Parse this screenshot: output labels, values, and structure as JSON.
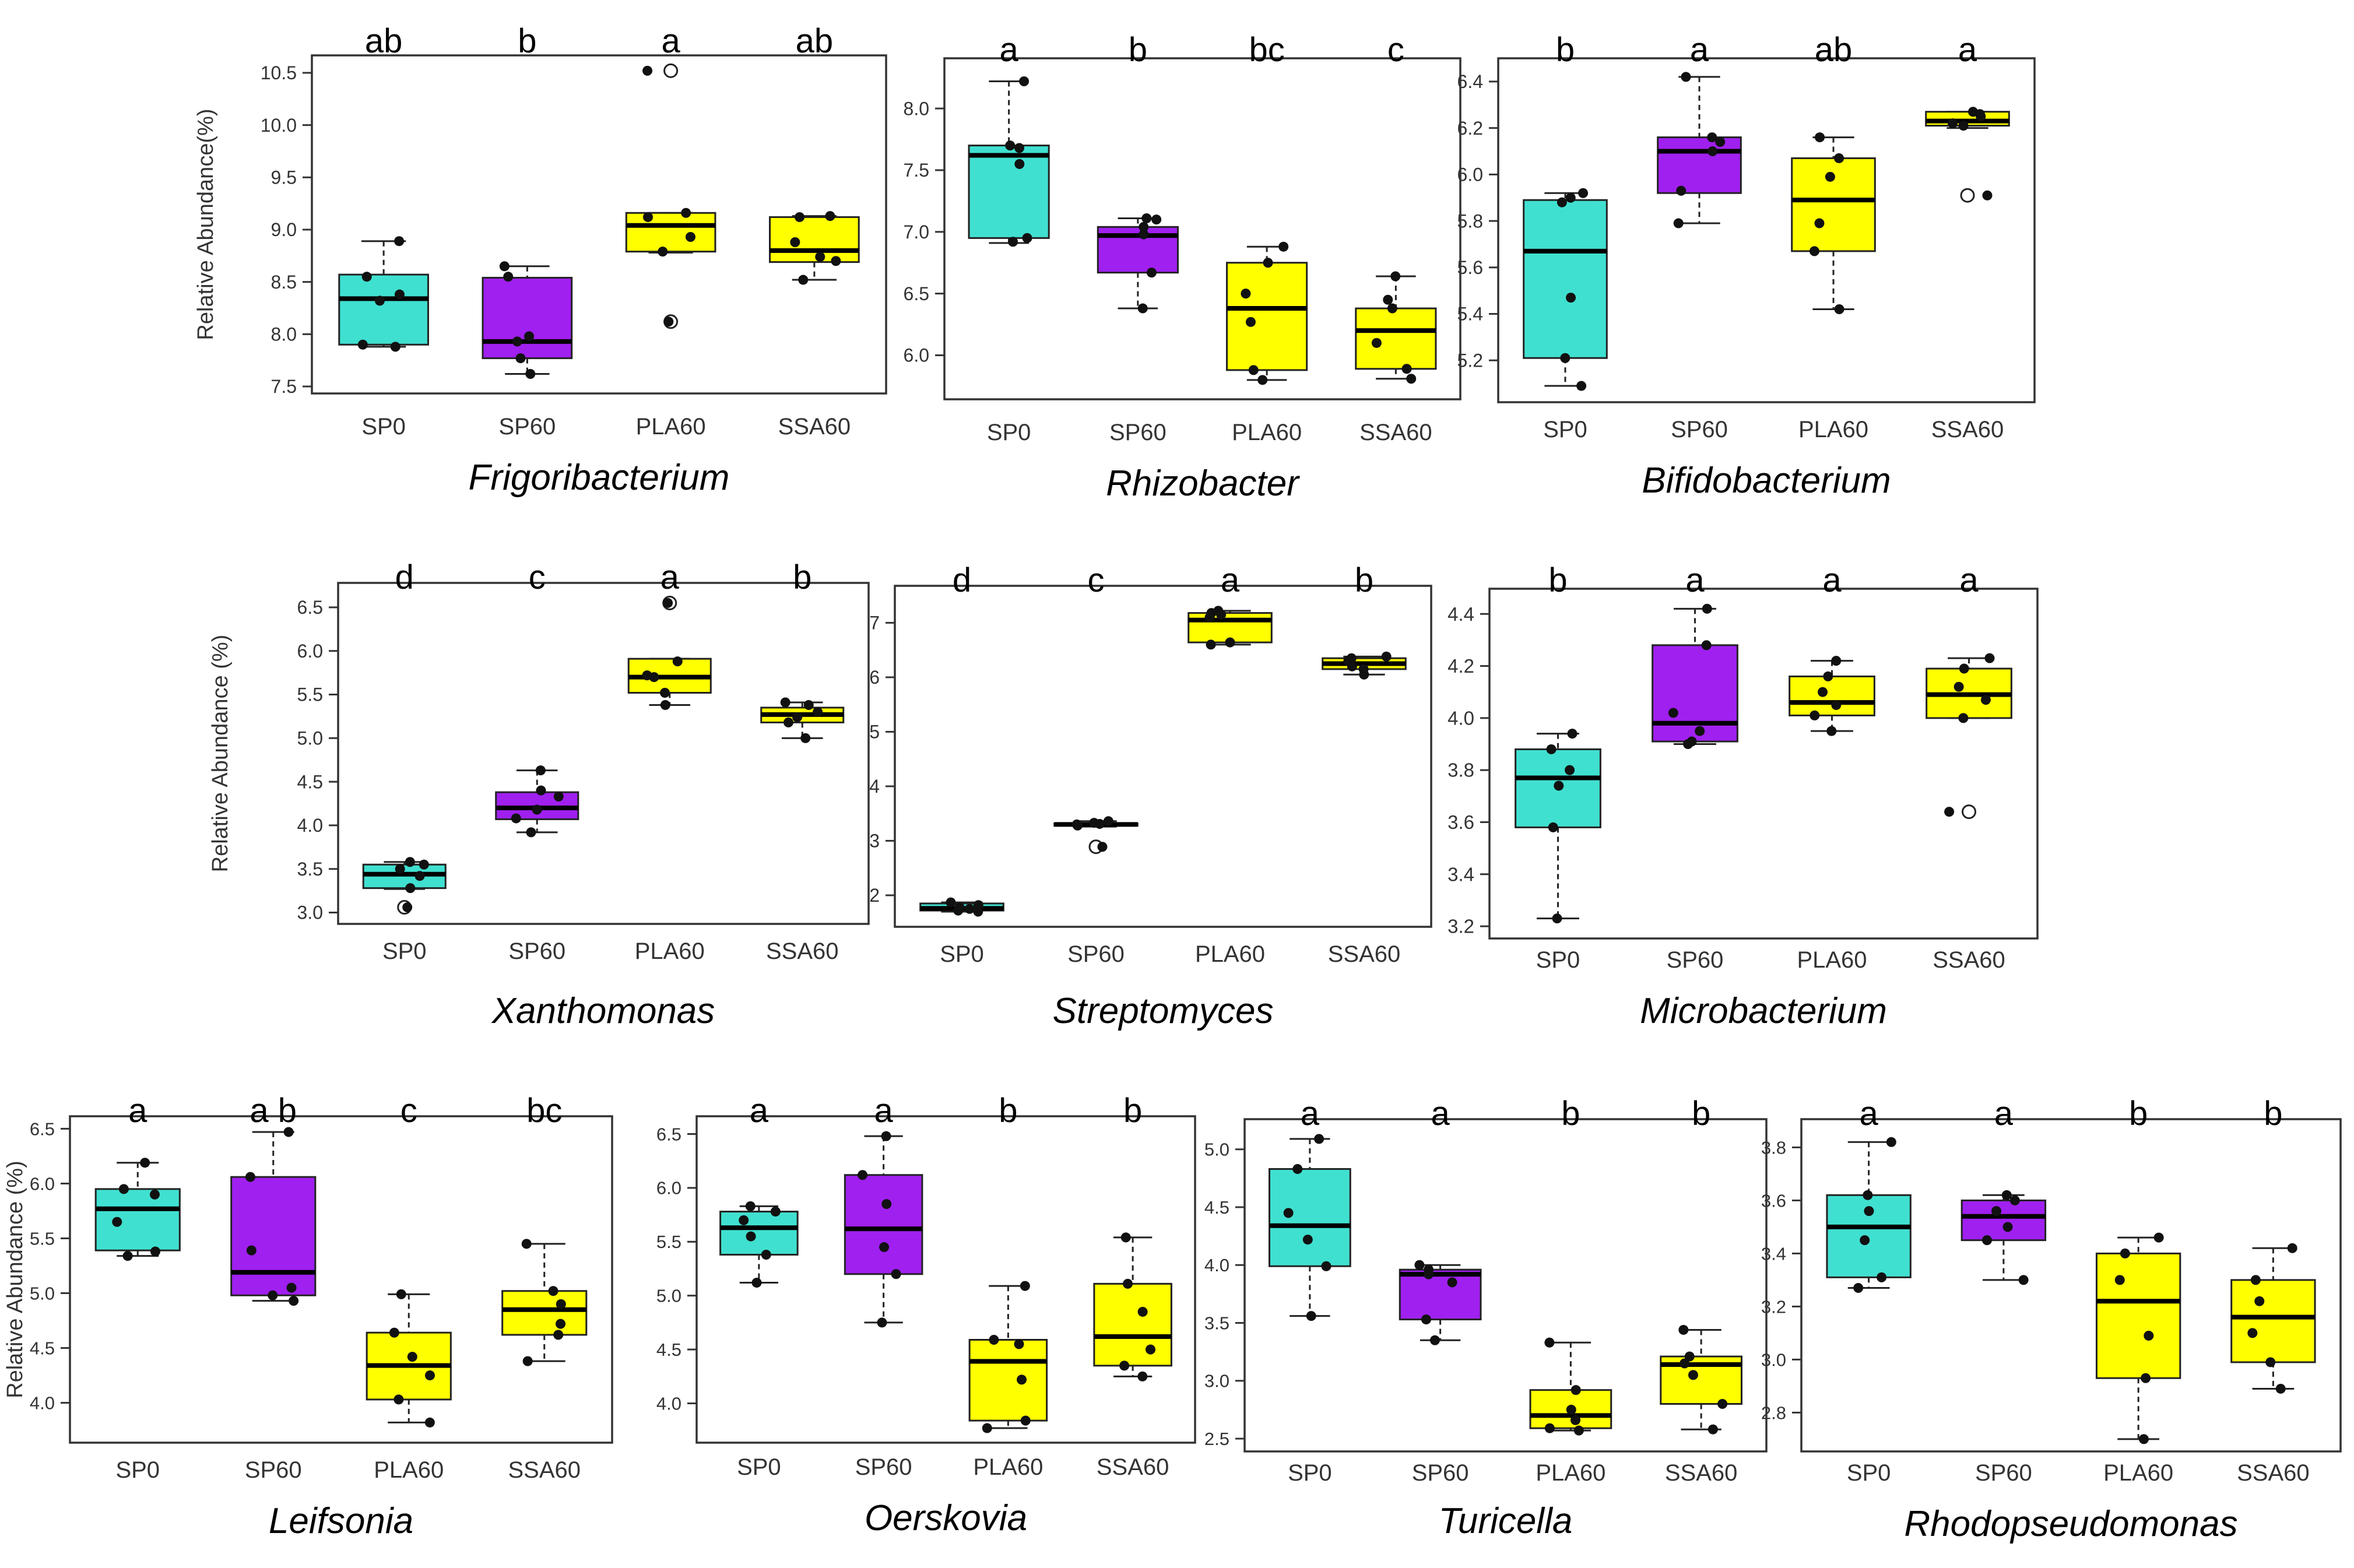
{
  "colors": {
    "SP0": "#40e0d0",
    "SP60": "#a020f0",
    "PLA60": "#ffff00",
    "SSA60": "#ffff00"
  },
  "chart_data": [
    {
      "type": "box",
      "title": "Frigoribacterium",
      "ylabel": "Relative Abundance(%)",
      "categories": [
        "SP0",
        "SP60",
        "PLA60",
        "SSA60"
      ],
      "ylim": [
        7.5,
        10.6
      ],
      "yticks": [
        7.5,
        8.0,
        8.5,
        9.0,
        9.5,
        10.0,
        10.5
      ],
      "ytick_labels": [
        "7.5",
        "8.0",
        "8.5",
        "9.0",
        "9.5",
        "10.0",
        "10.5"
      ],
      "letters": [
        "ab",
        "b",
        "a",
        "ab"
      ],
      "boxes": [
        {
          "min": 7.88,
          "q1": 7.9,
          "median": 8.34,
          "q3": 8.57,
          "max": 8.89,
          "points": [
            7.88,
            7.9,
            8.32,
            8.38,
            8.55,
            8.89
          ],
          "outliers": []
        },
        {
          "min": 7.62,
          "q1": 7.77,
          "median": 7.93,
          "q3": 8.54,
          "max": 8.65,
          "points": [
            7.62,
            7.77,
            7.93,
            7.98,
            8.55,
            8.65
          ],
          "outliers": []
        },
        {
          "min": 8.78,
          "q1": 8.79,
          "median": 9.04,
          "q3": 9.16,
          "max": 9.16,
          "points": [
            8.12,
            8.79,
            8.93,
            9.12,
            9.16,
            10.52
          ],
          "outliers": [
            8.12,
            10.52
          ]
        },
        {
          "min": 8.52,
          "q1": 8.69,
          "median": 8.8,
          "q3": 9.12,
          "max": 9.13,
          "points": [
            8.52,
            8.7,
            8.74,
            8.88,
            9.12,
            9.13
          ],
          "outliers": []
        }
      ]
    },
    {
      "type": "box",
      "title": "Rhizobacter",
      "ylabel": "",
      "categories": [
        "SP0",
        "SP60",
        "PLA60",
        "SSA60"
      ],
      "ylim": [
        5.7,
        8.35
      ],
      "yticks": [
        6.0,
        6.5,
        7.0,
        7.5,
        8.0
      ],
      "ytick_labels": [
        "6.0",
        "6.5",
        "7.0",
        "7.5",
        "8.0"
      ],
      "letters": [
        "a",
        "b",
        "bc",
        "c"
      ],
      "boxes": [
        {
          "min": 6.91,
          "q1": 6.95,
          "median": 7.62,
          "q3": 7.7,
          "max": 8.22,
          "points": [
            6.92,
            6.95,
            7.55,
            7.68,
            7.7,
            8.22
          ],
          "outliers": []
        },
        {
          "min": 6.38,
          "q1": 6.67,
          "median": 6.97,
          "q3": 7.04,
          "max": 7.11,
          "points": [
            6.38,
            6.67,
            6.98,
            7.04,
            7.1,
            7.11
          ],
          "outliers": []
        },
        {
          "min": 5.8,
          "q1": 5.88,
          "median": 6.38,
          "q3": 6.75,
          "max": 6.88,
          "points": [
            5.8,
            5.88,
            6.27,
            6.5,
            6.75,
            6.88
          ],
          "outliers": []
        },
        {
          "min": 5.81,
          "q1": 5.89,
          "median": 6.2,
          "q3": 6.38,
          "max": 6.64,
          "points": [
            5.81,
            5.89,
            6.1,
            6.38,
            6.45,
            6.64
          ],
          "outliers": []
        }
      ]
    },
    {
      "type": "box",
      "title": "Bifidobacterium",
      "ylabel": "",
      "categories": [
        "SP0",
        "SP60",
        "PLA60",
        "SSA60"
      ],
      "ylim": [
        5.05,
        6.47
      ],
      "yticks": [
        5.2,
        5.4,
        5.6,
        5.8,
        6.0,
        6.2,
        6.4
      ],
      "ytick_labels": [
        "5.2",
        "5.4",
        "5.6",
        "5.8",
        "6.0",
        "6.2",
        "6.4"
      ],
      "letters": [
        "b",
        "a",
        "ab",
        "a"
      ],
      "boxes": [
        {
          "min": 5.09,
          "q1": 5.21,
          "median": 5.67,
          "q3": 5.89,
          "max": 5.92,
          "points": [
            5.09,
            5.21,
            5.47,
            5.88,
            5.9,
            5.92
          ],
          "outliers": []
        },
        {
          "min": 5.79,
          "q1": 5.92,
          "median": 6.1,
          "q3": 6.16,
          "max": 6.42,
          "points": [
            5.79,
            5.93,
            6.1,
            6.14,
            6.16,
            6.42
          ],
          "outliers": []
        },
        {
          "min": 5.42,
          "q1": 5.67,
          "median": 5.89,
          "q3": 6.07,
          "max": 6.16,
          "points": [
            5.42,
            5.67,
            5.79,
            5.99,
            6.07,
            6.16
          ],
          "outliers": []
        },
        {
          "min": 6.2,
          "q1": 6.21,
          "median": 6.23,
          "q3": 6.27,
          "max": 6.27,
          "points": [
            5.91,
            6.21,
            6.22,
            6.25,
            6.26,
            6.27
          ],
          "outliers": [
            5.91
          ]
        }
      ]
    },
    {
      "type": "box",
      "title": "Xanthomonas",
      "ylabel": "Relative Abundance (%)",
      "categories": [
        "SP0",
        "SP60",
        "PLA60",
        "SSA60"
      ],
      "ylim": [
        2.95,
        6.7
      ],
      "yticks": [
        3.0,
        3.5,
        4.0,
        4.5,
        5.0,
        5.5,
        6.0,
        6.5
      ],
      "ytick_labels": [
        "3.0",
        "3.5",
        "4.0",
        "4.5",
        "5.0",
        "5.5",
        "6.0",
        "6.5"
      ],
      "letters": [
        "d",
        "c",
        "a",
        "b"
      ],
      "boxes": [
        {
          "min": 3.27,
          "q1": 3.28,
          "median": 3.44,
          "q3": 3.55,
          "max": 3.58,
          "points": [
            3.06,
            3.28,
            3.42,
            3.5,
            3.55,
            3.58
          ],
          "outliers": [
            3.06
          ]
        },
        {
          "min": 3.92,
          "q1": 4.07,
          "median": 4.2,
          "q3": 4.38,
          "max": 4.63,
          "points": [
            3.92,
            4.08,
            4.18,
            4.33,
            4.4,
            4.63
          ],
          "outliers": []
        },
        {
          "min": 5.38,
          "q1": 5.52,
          "median": 5.7,
          "q3": 5.91,
          "max": 5.91,
          "points": [
            5.38,
            5.52,
            5.7,
            5.72,
            5.88,
            6.55
          ],
          "outliers": [
            6.55
          ]
        },
        {
          "min": 5.0,
          "q1": 5.18,
          "median": 5.27,
          "q3": 5.35,
          "max": 5.41,
          "points": [
            5.0,
            5.18,
            5.24,
            5.3,
            5.38,
            5.41
          ],
          "outliers": []
        }
      ]
    },
    {
      "type": "box",
      "title": "Streptomyces",
      "ylabel": "",
      "categories": [
        "SP0",
        "SP60",
        "PLA60",
        "SSA60"
      ],
      "ylim": [
        1.55,
        7.55
      ],
      "yticks": [
        2,
        3,
        4,
        5,
        6,
        7
      ],
      "ytick_labels": [
        "2",
        "3",
        "4",
        "5",
        "6",
        "7"
      ],
      "letters": [
        "d",
        "c",
        "a",
        "b"
      ],
      "boxes": [
        {
          "min": 1.7,
          "q1": 1.72,
          "median": 1.76,
          "q3": 1.85,
          "max": 1.87,
          "points": [
            1.7,
            1.72,
            1.75,
            1.78,
            1.82,
            1.87
          ],
          "outliers": []
        },
        {
          "min": 3.26,
          "q1": 3.28,
          "median": 3.3,
          "q3": 3.32,
          "max": 3.36,
          "points": [
            2.89,
            3.28,
            3.3,
            3.31,
            3.33,
            3.36
          ],
          "outliers": [
            2.89
          ]
        },
        {
          "min": 6.6,
          "q1": 6.64,
          "median": 7.05,
          "q3": 7.18,
          "max": 7.22,
          "points": [
            6.6,
            6.64,
            7.1,
            7.15,
            7.18,
            7.22
          ],
          "outliers": []
        },
        {
          "min": 6.05,
          "q1": 6.15,
          "median": 6.25,
          "q3": 6.35,
          "max": 6.38,
          "points": [
            6.05,
            6.15,
            6.2,
            6.3,
            6.35,
            6.38
          ],
          "outliers": []
        }
      ]
    },
    {
      "type": "box",
      "title": "Microbacterium",
      "ylabel": "",
      "categories": [
        "SP0",
        "SP60",
        "PLA60",
        "SSA60"
      ],
      "ylim": [
        3.18,
        4.47
      ],
      "yticks": [
        3.2,
        3.4,
        3.6,
        3.8,
        4.0,
        4.2,
        4.4
      ],
      "ytick_labels": [
        "3.2",
        "3.4",
        "3.6",
        "3.8",
        "4.0",
        "4.2",
        "4.4"
      ],
      "letters": [
        "b",
        "a",
        "a",
        "a"
      ],
      "boxes": [
        {
          "min": 3.23,
          "q1": 3.58,
          "median": 3.77,
          "q3": 3.88,
          "max": 3.94,
          "points": [
            3.23,
            3.58,
            3.74,
            3.8,
            3.88,
            3.94
          ],
          "outliers": []
        },
        {
          "min": 3.9,
          "q1": 3.91,
          "median": 3.98,
          "q3": 4.28,
          "max": 4.42,
          "points": [
            3.9,
            3.91,
            3.95,
            4.02,
            4.28,
            4.42
          ],
          "outliers": []
        },
        {
          "min": 3.95,
          "q1": 4.01,
          "median": 4.06,
          "q3": 4.16,
          "max": 4.22,
          "points": [
            3.95,
            4.01,
            4.05,
            4.1,
            4.16,
            4.22
          ],
          "outliers": []
        },
        {
          "min": 4.0,
          "q1": 4.0,
          "median": 4.09,
          "q3": 4.19,
          "max": 4.23,
          "points": [
            3.64,
            4.0,
            4.07,
            4.12,
            4.19,
            4.23
          ],
          "outliers": [
            3.64
          ]
        }
      ]
    },
    {
      "type": "box",
      "title": "Leifsonia",
      "ylabel": "Relative Abundance (%)",
      "categories": [
        "SP0",
        "SP60",
        "PLA60",
        "SSA60"
      ],
      "ylim": [
        3.7,
        6.55
      ],
      "yticks": [
        4.0,
        4.5,
        5.0,
        5.5,
        6.0,
        6.5
      ],
      "ytick_labels": [
        "4.0",
        "4.5",
        "5.0",
        "5.5",
        "6.0",
        "6.5"
      ],
      "letters": [
        "a",
        "a b",
        "c",
        "bc"
      ],
      "boxes": [
        {
          "min": 5.34,
          "q1": 5.39,
          "median": 5.77,
          "q3": 5.95,
          "max": 6.19,
          "points": [
            5.34,
            5.38,
            5.65,
            5.9,
            5.95,
            6.19
          ],
          "outliers": []
        },
        {
          "min": 4.93,
          "q1": 4.98,
          "median": 5.19,
          "q3": 6.06,
          "max": 6.47,
          "points": [
            4.93,
            4.98,
            5.05,
            5.39,
            6.06,
            6.47
          ],
          "outliers": []
        },
        {
          "min": 3.82,
          "q1": 4.03,
          "median": 4.34,
          "q3": 4.64,
          "max": 4.99,
          "points": [
            3.82,
            4.03,
            4.25,
            4.42,
            4.64,
            4.99
          ],
          "outliers": []
        },
        {
          "min": 4.38,
          "q1": 4.62,
          "median": 4.85,
          "q3": 5.02,
          "max": 5.45,
          "points": [
            4.38,
            4.62,
            4.72,
            4.9,
            5.02,
            5.45
          ],
          "outliers": []
        }
      ]
    },
    {
      "type": "box",
      "title": "Oerskovia",
      "ylabel": "",
      "categories": [
        "SP0",
        "SP60",
        "PLA60",
        "SSA60"
      ],
      "ylim": [
        3.7,
        6.6
      ],
      "yticks": [
        4.0,
        4.5,
        5.0,
        5.5,
        6.0,
        6.5
      ],
      "ytick_labels": [
        "4.0",
        "4.5",
        "5.0",
        "5.5",
        "6.0",
        "6.5"
      ],
      "letters": [
        "a",
        "a",
        "b",
        "b"
      ],
      "boxes": [
        {
          "min": 5.12,
          "q1": 5.38,
          "median": 5.63,
          "q3": 5.78,
          "max": 5.83,
          "points": [
            5.12,
            5.38,
            5.55,
            5.7,
            5.78,
            5.83
          ],
          "outliers": []
        },
        {
          "min": 4.75,
          "q1": 5.2,
          "median": 5.62,
          "q3": 6.12,
          "max": 6.48,
          "points": [
            4.75,
            5.2,
            5.45,
            5.85,
            6.12,
            6.48
          ],
          "outliers": []
        },
        {
          "min": 3.77,
          "q1": 3.84,
          "median": 4.39,
          "q3": 4.59,
          "max": 5.09,
          "points": [
            3.77,
            3.84,
            4.22,
            4.55,
            4.59,
            5.09
          ],
          "outliers": []
        },
        {
          "min": 4.25,
          "q1": 4.35,
          "median": 4.62,
          "q3": 5.11,
          "max": 5.54,
          "points": [
            4.25,
            4.35,
            4.5,
            4.85,
            5.11,
            5.54
          ],
          "outliers": []
        }
      ]
    },
    {
      "type": "box",
      "title": "Turicella",
      "ylabel": "",
      "categories": [
        "SP0",
        "SP60",
        "PLA60",
        "SSA60"
      ],
      "ylim": [
        2.45,
        5.2
      ],
      "yticks": [
        2.5,
        3.0,
        3.5,
        4.0,
        4.5,
        5.0
      ],
      "ytick_labels": [
        "2.5",
        "3.0",
        "3.5",
        "4.0",
        "4.5",
        "5.0"
      ],
      "letters": [
        "a",
        "a",
        "b",
        "b"
      ],
      "boxes": [
        {
          "min": 3.56,
          "q1": 3.99,
          "median": 4.34,
          "q3": 4.83,
          "max": 5.09,
          "points": [
            3.56,
            3.99,
            4.22,
            4.45,
            4.83,
            5.09
          ],
          "outliers": []
        },
        {
          "min": 3.35,
          "q1": 3.53,
          "median": 3.92,
          "q3": 3.96,
          "max": 4.0,
          "points": [
            3.35,
            3.53,
            3.85,
            3.92,
            3.96,
            4.0
          ],
          "outliers": []
        },
        {
          "min": 2.57,
          "q1": 2.59,
          "median": 2.7,
          "q3": 2.92,
          "max": 3.33,
          "points": [
            2.57,
            2.59,
            2.66,
            2.75,
            2.92,
            3.33
          ],
          "outliers": []
        },
        {
          "min": 2.58,
          "q1": 2.8,
          "median": 3.14,
          "q3": 3.21,
          "max": 3.44,
          "points": [
            2.58,
            2.8,
            3.05,
            3.15,
            3.21,
            3.44
          ],
          "outliers": []
        }
      ]
    },
    {
      "type": "box",
      "title": "Rhodopseudomonas",
      "ylabel": "",
      "categories": [
        "SP0",
        "SP60",
        "PLA60",
        "SSA60"
      ],
      "ylim": [
        2.68,
        3.88
      ],
      "yticks": [
        2.8,
        3.0,
        3.2,
        3.4,
        3.6,
        3.8
      ],
      "ytick_labels": [
        "2.8",
        "3.0",
        "3.2",
        "3.4",
        "3.6",
        "3.8"
      ],
      "letters": [
        "a",
        "a",
        "b",
        "b"
      ],
      "boxes": [
        {
          "min": 3.27,
          "q1": 3.31,
          "median": 3.5,
          "q3": 3.62,
          "max": 3.82,
          "points": [
            3.27,
            3.31,
            3.45,
            3.56,
            3.62,
            3.82
          ],
          "outliers": []
        },
        {
          "min": 3.3,
          "q1": 3.45,
          "median": 3.54,
          "q3": 3.6,
          "max": 3.62,
          "points": [
            3.3,
            3.45,
            3.5,
            3.56,
            3.6,
            3.62
          ],
          "outliers": []
        },
        {
          "min": 2.7,
          "q1": 2.93,
          "median": 3.22,
          "q3": 3.4,
          "max": 3.46,
          "points": [
            2.7,
            2.93,
            3.09,
            3.3,
            3.4,
            3.46
          ],
          "outliers": []
        },
        {
          "min": 2.89,
          "q1": 2.99,
          "median": 3.16,
          "q3": 3.3,
          "max": 3.42,
          "points": [
            2.89,
            2.99,
            3.1,
            3.22,
            3.3,
            3.42
          ],
          "outliers": []
        }
      ]
    }
  ]
}
